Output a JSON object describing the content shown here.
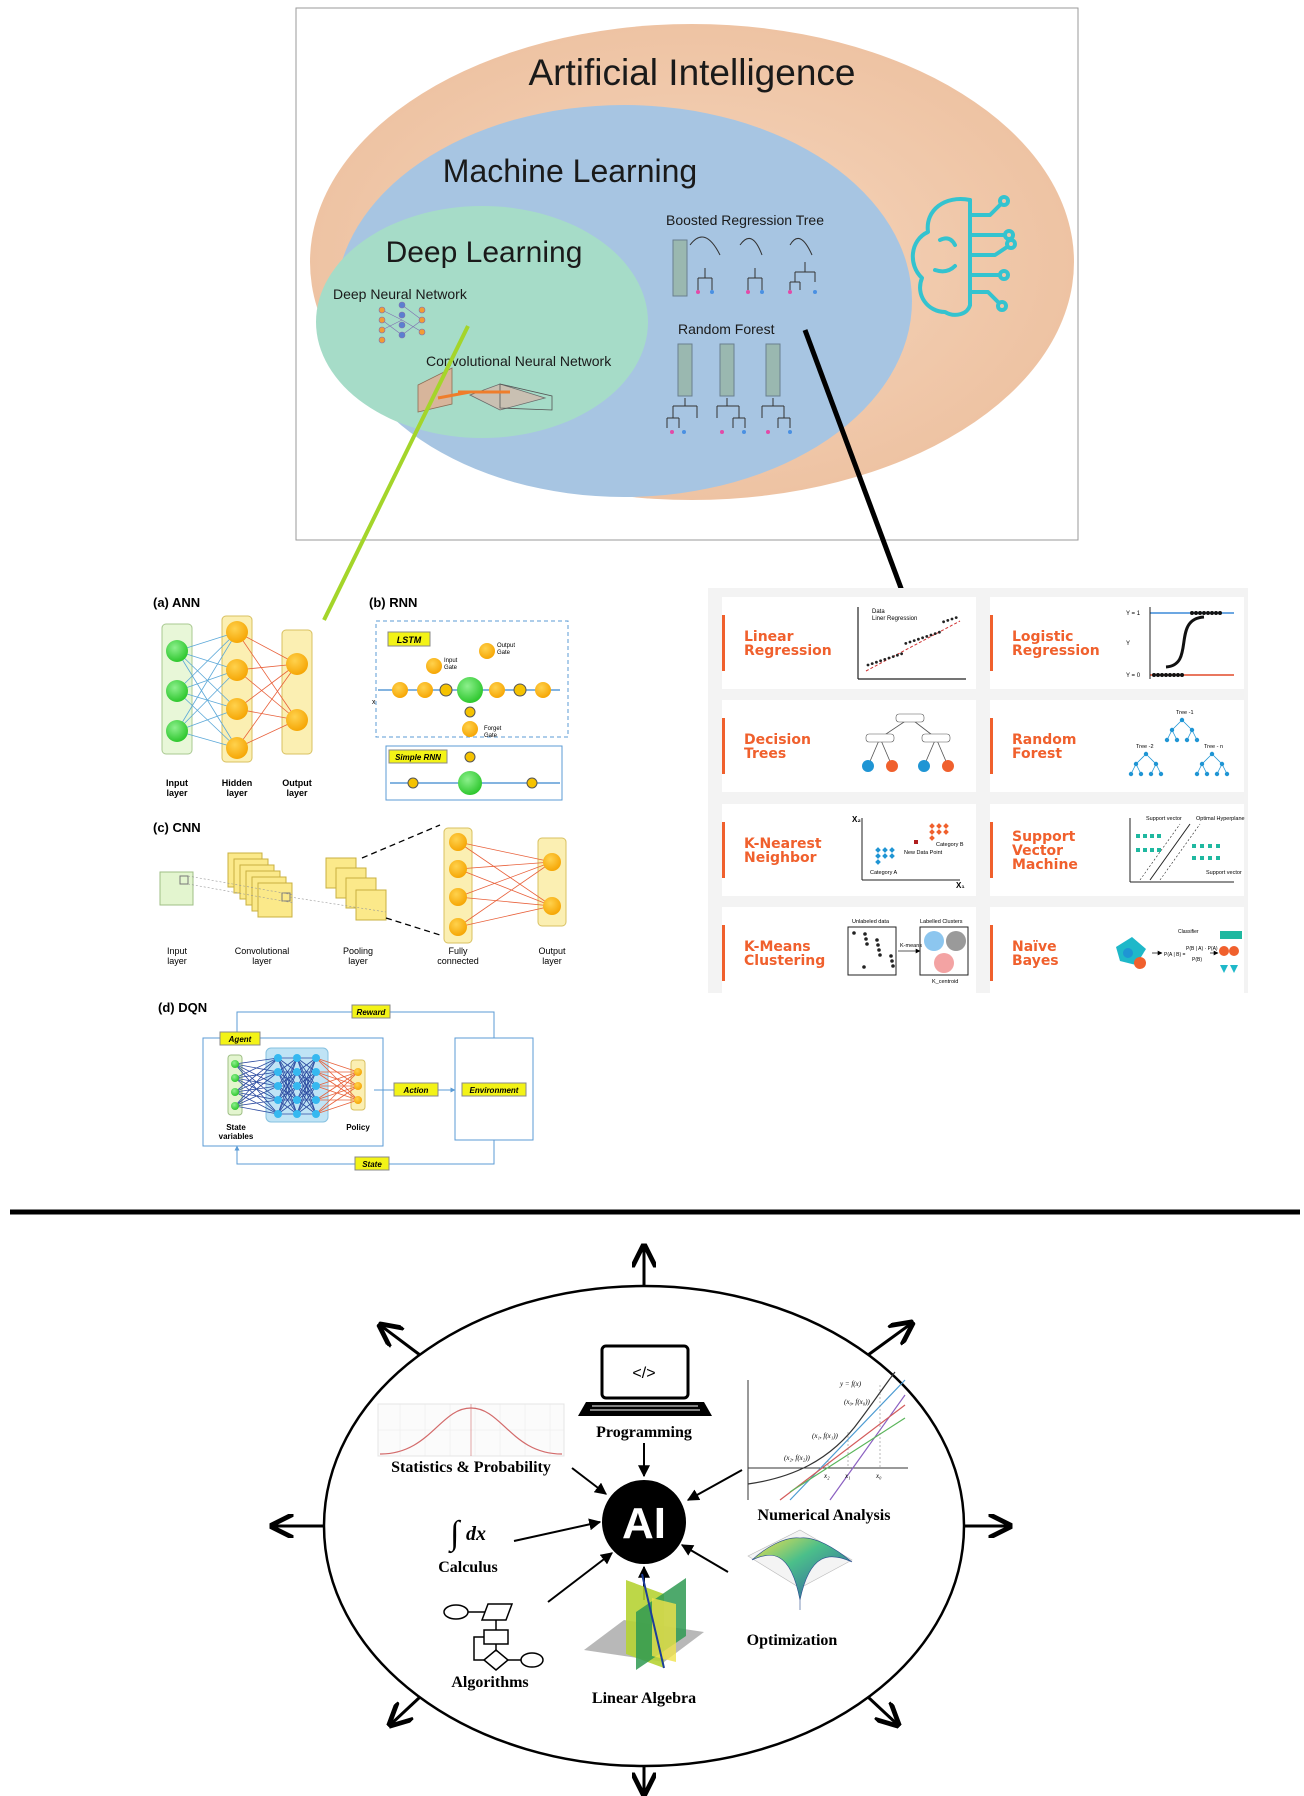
{
  "venn": {
    "ai_label": "Artificial Intelligence",
    "ml_label": "Machine Learning",
    "dl_label": "Deep Learning",
    "dnn_label": "Deep Neural Network",
    "cnn_label": "Convolutional Neural Network",
    "brt_label": "Boosted Regression Tree",
    "rf_label": "Random Forest",
    "colors": {
      "ai": "#f2cdb1",
      "ml": "#a9c6e2",
      "dl": "#a8ddc8",
      "brain": "#34c3cf"
    }
  },
  "nn_panels": {
    "ann": {
      "title": "(a) ANN",
      "layers": [
        "Input",
        "layer",
        "Hidden",
        "layer",
        "Output",
        "layer"
      ]
    },
    "rnn": {
      "title": "(b) RNN",
      "lstm_tag": "LSTM",
      "simple_tag": "Simple RNN",
      "input_gate": [
        "Input",
        "Gate"
      ],
      "output_gate": [
        "Output",
        "Gate"
      ],
      "forget_gate": [
        "Forget",
        "Gate"
      ],
      "x_label": "x"
    },
    "cnn": {
      "title": "(c) CNN",
      "layers": [
        [
          "Input",
          "layer"
        ],
        [
          "Convolutional",
          "layer"
        ],
        [
          "Pooling",
          "layer"
        ],
        [
          "Fully",
          "connected"
        ],
        [
          "Output",
          "layer"
        ]
      ]
    },
    "dqn": {
      "title": "(d) DQN",
      "reward": "Reward",
      "agent": "Agent",
      "action": "Action",
      "environment": "Environment",
      "state": "State",
      "state_vars": [
        "State",
        "variables"
      ],
      "policy": "Policy"
    }
  },
  "ml_cards": [
    {
      "title": [
        "Linear",
        "Regression"
      ],
      "legend": [
        "Data",
        "Liner Regression"
      ]
    },
    {
      "title": [
        "Logistic",
        "Regression"
      ],
      "labels": [
        "Y = 1",
        "Y",
        "Y = 0"
      ]
    },
    {
      "title": [
        "Decision",
        "Trees"
      ]
    },
    {
      "title": [
        "Random",
        "Forest"
      ],
      "labels": [
        "Tree -1",
        "Tree -2",
        "Tree - n"
      ]
    },
    {
      "title": [
        "K-Nearest",
        "Neighbor"
      ],
      "labels": [
        "X₂",
        "X₁",
        "Category B",
        "Category A",
        "New Data Point"
      ]
    },
    {
      "title": [
        "Support",
        "Vector",
        "Machine"
      ],
      "labels": [
        "Support vector",
        "Optimal Hyperplane",
        "Support vector"
      ]
    },
    {
      "title": [
        "K-Means",
        "Clustering"
      ],
      "labels": [
        "Unlabeled data",
        "Labelled Clusters",
        "K-means",
        "K_centroid"
      ]
    },
    {
      "title": [
        "Naïve",
        "Bayes"
      ],
      "labels": [
        "Classifier",
        "P(A | B) =",
        "P(B | A) · P(A)",
        "P(B)"
      ]
    }
  ],
  "ai_hub": {
    "center": "AI",
    "topics": {
      "programming": "Programming",
      "code_glyph": "</>",
      "statistics": "Statistics & Probability",
      "numerical": "Numerical Analysis",
      "calculus": "Calculus",
      "integral": "∫",
      "dx": "dx",
      "optimization": "Optimization",
      "algorithms": "Algorithms",
      "linear_algebra": "Linear Algebra"
    },
    "numerical_labels": [
      "y = f(x)",
      "(x₀, f(x₀))",
      "(x₁, f(x₁))",
      "(x₂, f(x₂))",
      "x₂",
      "x₁",
      "x₀"
    ]
  }
}
